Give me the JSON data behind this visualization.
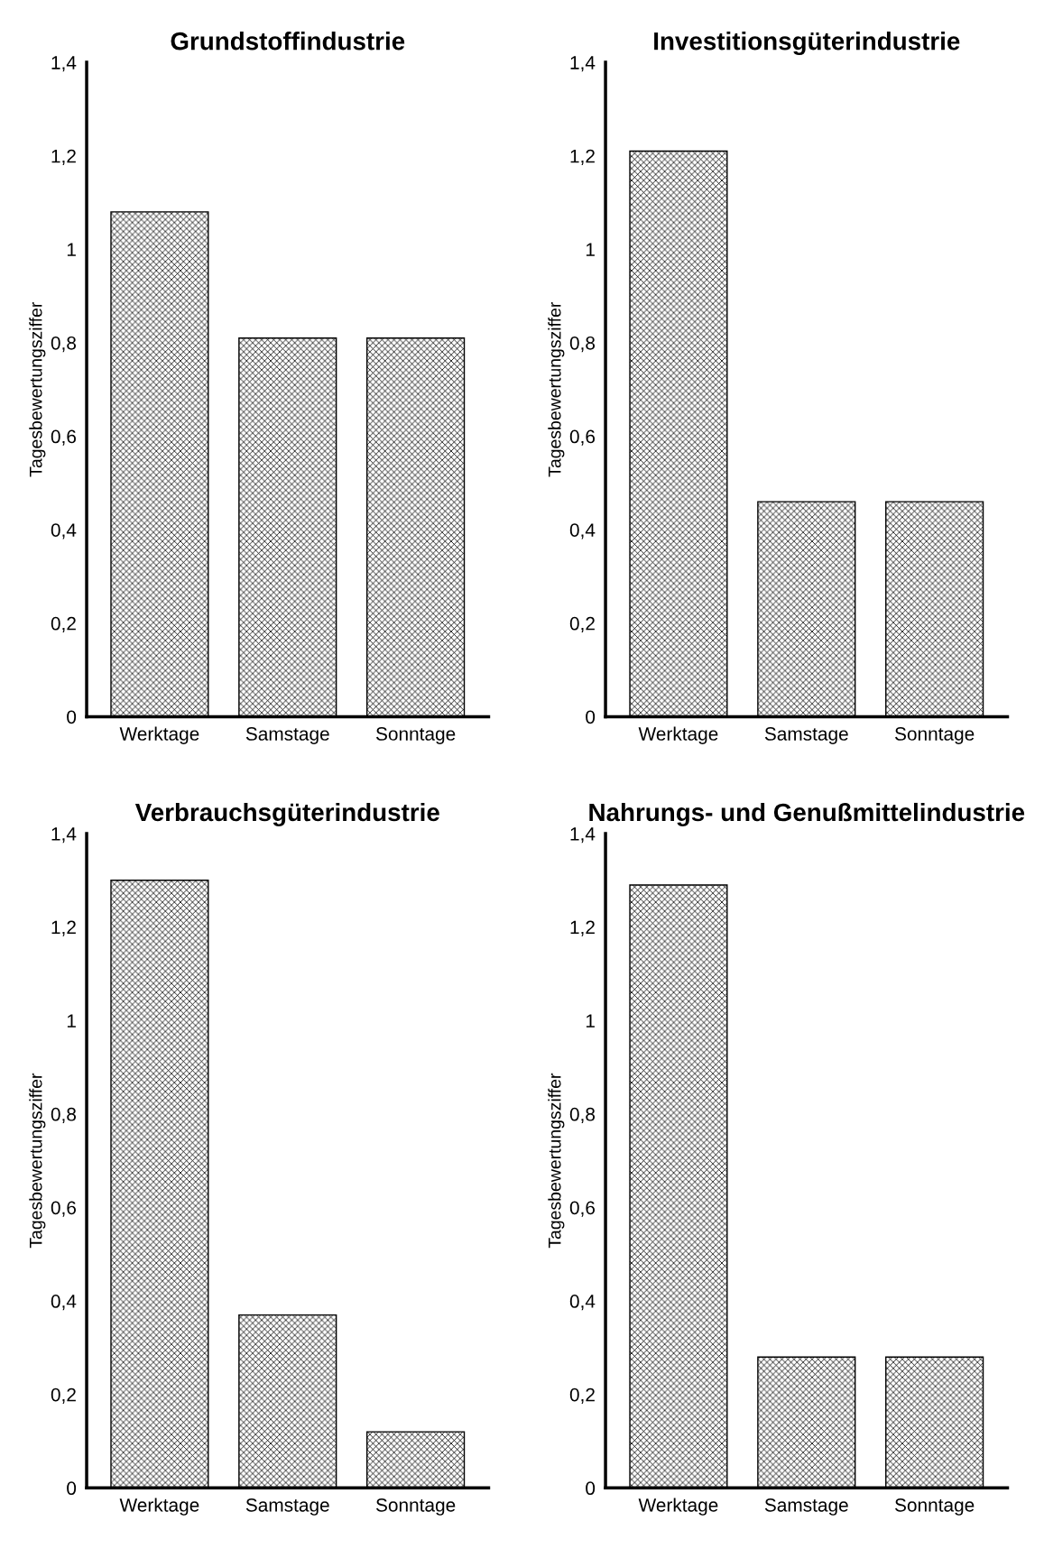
{
  "chart_data": [
    {
      "type": "bar",
      "title": "Grundstoffindustrie",
      "ylabel": "Tagesbewertungsziffer",
      "categories": [
        "Werktage",
        "Samstage",
        "Sonntage"
      ],
      "values": [
        1.08,
        0.81,
        0.81
      ],
      "color": "#000000",
      "ylim": [
        0,
        1.4
      ],
      "yticks": [
        0,
        {
          "value": 0.2,
          "label": "0,2"
        },
        {
          "value": 0.4,
          "label": "0,4"
        },
        {
          "value": 0.6,
          "label": "0,6"
        },
        {
          "value": 0.8,
          "label": "0,8"
        },
        1,
        {
          "value": 1.2,
          "label": "1,2"
        },
        {
          "value": 1.4,
          "label": "1,4"
        }
      ],
      "grid": false,
      "legend": false
    },
    {
      "type": "bar",
      "title": "Investitionsgüterindustrie",
      "ylabel": "Tagesbewertungsziffer",
      "categories": [
        "Werktage",
        "Samstage",
        "Sonntage"
      ],
      "values": [
        1.21,
        0.46,
        0.46
      ],
      "color": "#000000",
      "ylim": [
        0,
        1.4
      ],
      "yticks": [
        0,
        {
          "value": 0.2,
          "label": "0,2"
        },
        {
          "value": 0.4,
          "label": "0,4"
        },
        {
          "value": 0.6,
          "label": "0,6"
        },
        {
          "value": 0.8,
          "label": "0,8"
        },
        1,
        {
          "value": 1.2,
          "label": "1,2"
        },
        {
          "value": 1.4,
          "label": "1,4"
        }
      ],
      "grid": false,
      "legend": false
    },
    {
      "type": "bar",
      "title": "Verbrauchsgüterindustrie",
      "ylabel": "Tagesbewertungsziffer",
      "categories": [
        "Werktage",
        "Samstage",
        "Sonntage"
      ],
      "values": [
        1.3,
        0.37,
        0.12
      ],
      "color": "#000000",
      "ylim": [
        0,
        1.4
      ],
      "yticks": [
        0,
        {
          "value": 0.2,
          "label": "0,2"
        },
        {
          "value": 0.4,
          "label": "0,4"
        },
        {
          "value": 0.6,
          "label": "0,6"
        },
        {
          "value": 0.8,
          "label": "0,8"
        },
        1,
        {
          "value": 1.2,
          "label": "1,2"
        },
        {
          "value": 1.4,
          "label": "1,4"
        }
      ],
      "grid": false,
      "legend": false
    },
    {
      "type": "bar",
      "title": "Nahrungs- und Genußmittelindustrie",
      "ylabel": "Tagesbewertungsziffer",
      "categories": [
        "Werktage",
        "Samstage",
        "Sonntage"
      ],
      "values": [
        1.29,
        0.28,
        0.28
      ],
      "color": "#000000",
      "ylim": [
        0,
        1.4
      ],
      "yticks": [
        0,
        {
          "value": 0.2,
          "label": "0,2"
        },
        {
          "value": 0.4,
          "label": "0,4"
        },
        {
          "value": 0.6,
          "label": "0,6"
        },
        {
          "value": 0.8,
          "label": "0,8"
        },
        1,
        {
          "value": 1.2,
          "label": "1,2"
        },
        {
          "value": 1.4,
          "label": "1,4"
        }
      ],
      "grid": false,
      "legend": false
    }
  ]
}
